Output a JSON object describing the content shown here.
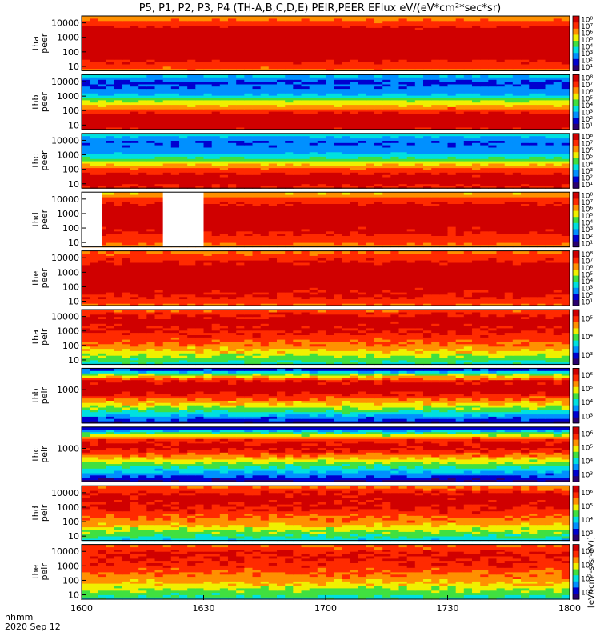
{
  "title": "P5, P1, P2, P3, P4 (TH-A,B,C,D,E) PEIR,PEER EFlux eV/(eV*cm²*sec*sr)",
  "time_axis_label": "hhmm",
  "date_label": "2020 Sep 12",
  "colorbar_unit": "[eV/(cm²-s-sr-eV)]",
  "colormap": [
    "#2a0070",
    "#0000d0",
    "#0090ff",
    "#00e0e0",
    "#40e040",
    "#f0f000",
    "#ff9000",
    "#ff2a00",
    "#d00000"
  ],
  "chart_data": [
    {
      "type": "heatmap",
      "ylabel": [
        "tha",
        "peer"
      ],
      "y_ticks": [
        "10000",
        "1000",
        "100",
        "10"
      ],
      "y_range": [
        5,
        30000
      ],
      "y_scale": "log",
      "cbar_ticks": [
        "10⁸",
        "10⁷",
        "10⁶",
        "10⁵",
        "10⁴",
        "10³",
        "10²",
        "10¹"
      ],
      "cbar_range": [
        1,
        100000000
      ],
      "profile": [
        [
          5,
          5.8
        ],
        [
          10,
          6.6
        ],
        [
          30,
          7.3
        ],
        [
          100,
          7.5
        ],
        [
          1000,
          7.5
        ],
        [
          5000,
          7.3
        ],
        [
          10000,
          6.6
        ],
        [
          30000,
          5.6
        ]
      ]
    },
    {
      "type": "heatmap",
      "ylabel": [
        "thb",
        "peer"
      ],
      "y_ticks": [
        "10000",
        "1000",
        "100",
        "10"
      ],
      "y_range": [
        5,
        30000
      ],
      "y_scale": "log",
      "cbar_ticks": [
        "10⁸",
        "10⁷",
        "10⁶",
        "10⁵",
        "10⁴",
        "10³",
        "10²",
        "10¹"
      ],
      "cbar_range": [
        1,
        100000000
      ],
      "profile": [
        [
          5,
          7.2
        ],
        [
          20,
          7.6
        ],
        [
          50,
          7.4
        ],
        [
          100,
          6.8
        ],
        [
          200,
          5.6
        ],
        [
          500,
          4.5
        ],
        [
          1000,
          3.0
        ],
        [
          3000,
          2.0
        ],
        [
          10000,
          1.6
        ],
        [
          30000,
          3.0
        ]
      ]
    },
    {
      "type": "heatmap",
      "ylabel": [
        "thc",
        "peer"
      ],
      "y_ticks": [
        "10000",
        "1000",
        "100",
        "10"
      ],
      "y_range": [
        5,
        30000
      ],
      "y_scale": "log",
      "cbar_ticks": [
        "10⁸",
        "10⁷",
        "10⁶",
        "10⁵",
        "10⁴",
        "10³",
        "10²",
        "10¹"
      ],
      "cbar_range": [
        1,
        100000000
      ],
      "profile": [
        [
          5,
          7.0
        ],
        [
          20,
          7.5
        ],
        [
          50,
          7.2
        ],
        [
          150,
          6.0
        ],
        [
          300,
          4.8
        ],
        [
          800,
          3.2
        ],
        [
          2000,
          2.1
        ],
        [
          8000,
          1.8
        ],
        [
          30000,
          3.2
        ]
      ]
    },
    {
      "type": "heatmap",
      "ylabel": [
        "thd",
        "peer"
      ],
      "y_ticks": [
        "10000",
        "1000",
        "100",
        "10"
      ],
      "y_range": [
        5,
        30000
      ],
      "y_scale": "log",
      "cbar_ticks": [
        "10⁸",
        "10⁷",
        "10⁶",
        "10⁵",
        "10⁴",
        "10³",
        "10²",
        "10¹"
      ],
      "cbar_range": [
        1,
        100000000
      ],
      "gaps": [
        [
          "1600",
          "1605"
        ],
        [
          "1620",
          "1630"
        ]
      ],
      "profile": [
        [
          5,
          5.6
        ],
        [
          10,
          6.4
        ],
        [
          50,
          7.2
        ],
        [
          500,
          7.5
        ],
        [
          3000,
          7.4
        ],
        [
          10000,
          6.8
        ],
        [
          30000,
          5.2
        ]
      ]
    },
    {
      "type": "heatmap",
      "ylabel": [
        "the",
        "peer"
      ],
      "y_ticks": [
        "10000",
        "1000",
        "100",
        "10"
      ],
      "y_range": [
        5,
        30000
      ],
      "y_scale": "log",
      "cbar_ticks": [
        "10⁸",
        "10⁷",
        "10⁶",
        "10⁵",
        "10⁴",
        "10³",
        "10²",
        "10¹"
      ],
      "cbar_range": [
        1,
        100000000
      ],
      "profile": [
        [
          5,
          6.0
        ],
        [
          10,
          6.8
        ],
        [
          30,
          7.2
        ],
        [
          300,
          7.5
        ],
        [
          2000,
          7.5
        ],
        [
          8000,
          7.0
        ],
        [
          30000,
          6.0
        ]
      ]
    },
    {
      "type": "heatmap",
      "ylabel": [
        "tha",
        "peir"
      ],
      "y_ticks": [
        "10000",
        "1000",
        "100",
        "10"
      ],
      "y_range": [
        5,
        30000
      ],
      "y_scale": "log",
      "cbar_ticks": [
        "10⁵",
        "10⁴",
        "10³"
      ],
      "cbar_range": [
        100,
        1000000
      ],
      "profile": [
        [
          5,
          3.6
        ],
        [
          10,
          3.9
        ],
        [
          30,
          4.4
        ],
        [
          100,
          5.0
        ],
        [
          1000,
          5.6
        ],
        [
          5000,
          5.8
        ],
        [
          10000,
          5.7
        ],
        [
          30000,
          5.2
        ]
      ]
    },
    {
      "type": "heatmap",
      "ylabel": [
        "thb",
        "peir"
      ],
      "y_ticks": [
        "1000"
      ],
      "y_range": [
        5,
        30000
      ],
      "y_scale": "log",
      "cbar_ticks": [
        "10⁶",
        "10⁵",
        "10⁴",
        "10³"
      ],
      "cbar_range": [
        100,
        1000000
      ],
      "profile": [
        [
          5,
          2.4
        ],
        [
          15,
          3.2
        ],
        [
          40,
          3.9
        ],
        [
          150,
          4.8
        ],
        [
          500,
          5.6
        ],
        [
          1500,
          5.9
        ],
        [
          4000,
          5.6
        ],
        [
          10000,
          4.5
        ],
        [
          20000,
          3.2
        ],
        [
          30000,
          2.4
        ]
      ]
    },
    {
      "type": "heatmap",
      "ylabel": [
        "thc",
        "peir"
      ],
      "y_ticks": [
        "1000"
      ],
      "y_range": [
        5,
        30000
      ],
      "y_scale": "log",
      "cbar_ticks": [
        "10⁶",
        "10⁵",
        "10⁴",
        "10³"
      ],
      "cbar_range": [
        100,
        1000000
      ],
      "profile": [
        [
          5,
          2.2
        ],
        [
          15,
          3.0
        ],
        [
          40,
          3.6
        ],
        [
          150,
          4.4
        ],
        [
          500,
          5.3
        ],
        [
          1500,
          5.8
        ],
        [
          4000,
          5.4
        ],
        [
          10000,
          4.2
        ],
        [
          20000,
          3.1
        ],
        [
          30000,
          2.3
        ]
      ]
    },
    {
      "type": "heatmap",
      "ylabel": [
        "thd",
        "peir"
      ],
      "y_ticks": [
        "10000",
        "1000",
        "100",
        "10"
      ],
      "y_range": [
        5,
        30000
      ],
      "y_scale": "log",
      "cbar_ticks": [
        "10⁶",
        "10⁵",
        "10⁴",
        "10³"
      ],
      "cbar_range": [
        100,
        1000000
      ],
      "profile": [
        [
          5,
          3.4
        ],
        [
          10,
          3.8
        ],
        [
          30,
          4.3
        ],
        [
          100,
          4.9
        ],
        [
          1000,
          5.6
        ],
        [
          5000,
          5.8
        ],
        [
          10000,
          5.6
        ],
        [
          30000,
          5.0
        ]
      ]
    },
    {
      "type": "heatmap",
      "ylabel": [
        "the",
        "peir"
      ],
      "y_ticks": [
        "10000",
        "1000",
        "100",
        "10"
      ],
      "y_range": [
        5,
        30000
      ],
      "y_scale": "log",
      "cbar_ticks": [
        "10⁶",
        "10⁵",
        "10⁴",
        "10³"
      ],
      "cbar_range": [
        100,
        1000000
      ],
      "profile": [
        [
          5,
          3.5
        ],
        [
          10,
          3.9
        ],
        [
          30,
          4.3
        ],
        [
          100,
          4.8
        ],
        [
          1000,
          5.4
        ],
        [
          5000,
          5.6
        ],
        [
          10000,
          5.5
        ],
        [
          30000,
          5.1
        ]
      ]
    }
  ],
  "x_ticks": [
    "1600",
    "1630",
    "1700",
    "1730",
    "1800"
  ]
}
